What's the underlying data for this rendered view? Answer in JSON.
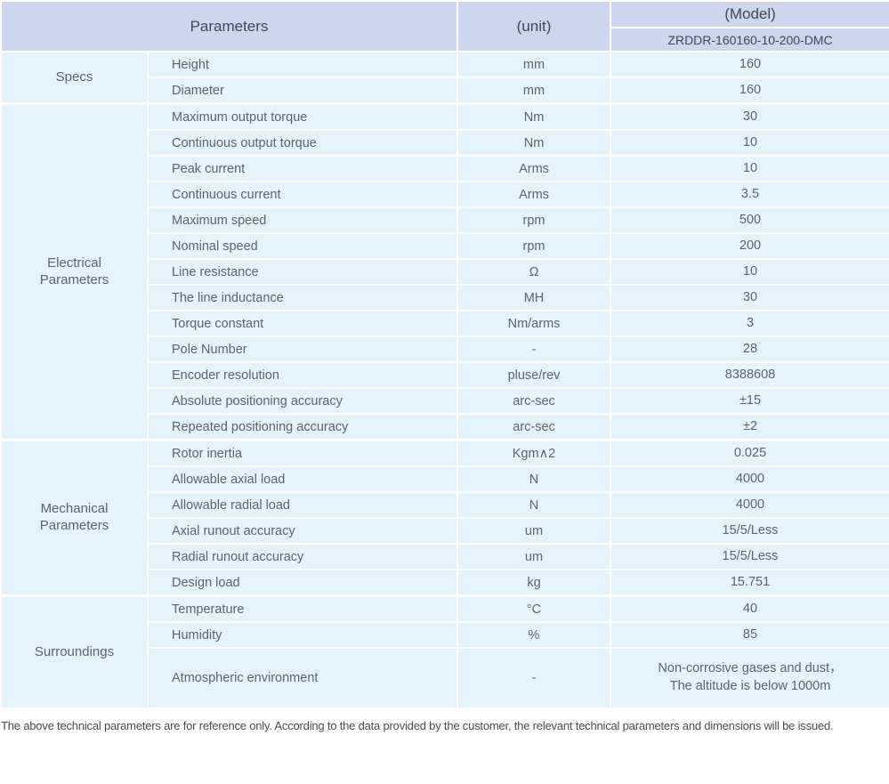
{
  "colors": {
    "header_bg": "#ccd6ec",
    "row_bg": "#e5f4fc",
    "separator": "#ffffff",
    "header_text": "#3f4855",
    "body_text": "#5a646d"
  },
  "table": {
    "header": {
      "parameters_label": "Parameters",
      "unit_label": "(unit)",
      "model_label": "(Model)",
      "model_value": "ZRDDR-160160-10-200-DMC"
    },
    "sections": [
      {
        "group": "Specs",
        "rows": [
          {
            "param": "Height",
            "unit": "mm",
            "value": "160"
          },
          {
            "param": "Diameter",
            "unit": "mm",
            "value": "160"
          }
        ]
      },
      {
        "group": "Electrical\nParameters",
        "rows": [
          {
            "param": "Maximum output torque",
            "unit": "Nm",
            "value": "30"
          },
          {
            "param": "Continuous output torque",
            "unit": "Nm",
            "value": "10"
          },
          {
            "param": "Peak current",
            "unit": "Arms",
            "value": "10"
          },
          {
            "param": "Continuous current",
            "unit": "Arms",
            "value": "3.5"
          },
          {
            "param": "Maximum speed",
            "unit": "rpm",
            "value": "500"
          },
          {
            "param": "Nominal speed",
            "unit": "rpm",
            "value": "200"
          },
          {
            "param": "Line resistance",
            "unit": "Ω",
            "value": "10"
          },
          {
            "param": "The line inductance",
            "unit": "MH",
            "value": "30"
          },
          {
            "param": "Torque constant",
            "unit": "Nm/arms",
            "value": "3"
          },
          {
            "param": "Pole Number",
            "unit": "-",
            "value": "28"
          },
          {
            "param": "Encoder resolution",
            "unit": "pluse/rev",
            "value": "8388608"
          },
          {
            "param": "Absolute positioning accuracy",
            "unit": "arc-sec",
            "value": "±15"
          },
          {
            "param": "Repeated positioning accuracy",
            "unit": "arc-sec",
            "value": "±2"
          }
        ]
      },
      {
        "group": "Mechanical\nParameters",
        "rows": [
          {
            "param": "Rotor inertia",
            "unit": "Kgm∧2",
            "value": "0.025"
          },
          {
            "param": "Allowable axial load",
            "unit": "N",
            "value": "4000"
          },
          {
            "param": "Allowable radial load",
            "unit": "N",
            "value": "4000"
          },
          {
            "param": "Axial runout accuracy",
            "unit": "um",
            "value": "15/5/Less"
          },
          {
            "param": "Radial runout accuracy",
            "unit": "um",
            "value": "15/5/Less"
          },
          {
            "param": "Design load",
            "unit": "kg",
            "value": "15.751"
          }
        ]
      },
      {
        "group": "Surroundings",
        "rows": [
          {
            "param": "Temperature",
            "unit": "°C",
            "value": "40"
          },
          {
            "param": "Humidity",
            "unit": "%",
            "value": "85"
          },
          {
            "param": "Atmospheric environment",
            "unit": "-",
            "value": "Non-corrosive gases and dust，\nThe altitude is below 1000m"
          }
        ]
      }
    ],
    "footnote": "The above technical parameters are for reference only. According to the data provided by the customer, the relevant technical parameters and dimensions will be issued."
  }
}
